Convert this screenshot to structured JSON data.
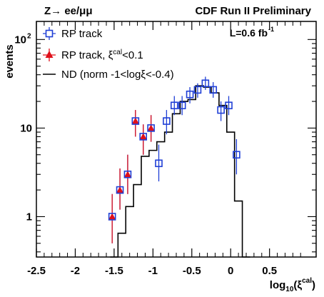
{
  "header": {
    "process_label": "Z→ ee/μμ",
    "experiment_label": "CDF Run II Preliminary",
    "lumi_label": "L=0.6 fb",
    "lumi_exp": "-1"
  },
  "chart_data": {
    "type": "scatter",
    "ylabel": "events",
    "xlabel_main": "log",
    "xlabel_sub": "10",
    "xlabel_paren": "(ξ",
    "xlabel_sup": "cal",
    "xlabel_close": ")",
    "xlim": [
      -2.5,
      1.1
    ],
    "ylim": [
      0.35,
      160
    ],
    "yscale": "log",
    "x_ticks": [
      -2.5,
      -2,
      -1.5,
      -1,
      -0.5,
      0,
      0.5
    ],
    "x_tick_labels": [
      "-2.5",
      "-2",
      "-1.5",
      "-1",
      "-0.5",
      "0",
      "0.5"
    ],
    "y_ticks": [
      1,
      10
    ],
    "y_tick_labels": [
      "1",
      "10"
    ],
    "y_tick_label_top": "10",
    "y_tick_label_top_exp": "2",
    "legend": {
      "placement": "top-left",
      "entries": [
        {
          "label": "RP track",
          "marker": "open-square",
          "color": "#1f3fd6"
        },
        {
          "label": "RP track, ξ",
          "sup": "cal",
          "tail": "<0.1",
          "marker": "triangle",
          "color": "#e0101a"
        },
        {
          "label": "ND (norm -1<logξ<-0.4)",
          "marker": "line",
          "color": "#000000"
        }
      ]
    },
    "series": [
      {
        "name": "RP track",
        "marker": "open-square",
        "color": "#1f3fd6",
        "points": [
          {
            "x": -1.525,
            "y": 1.0,
            "lo": 0.5,
            "hi": 1.8
          },
          {
            "x": -1.425,
            "y": 2.0,
            "lo": 1.2,
            "hi": 3.5
          },
          {
            "x": -1.325,
            "y": 3.0,
            "lo": 1.8,
            "hi": 5.0
          },
          {
            "x": -1.225,
            "y": 12.0,
            "lo": 8.0,
            "hi": 16.0
          },
          {
            "x": -1.125,
            "y": 8.0,
            "lo": 5.0,
            "hi": 11.0
          },
          {
            "x": -1.025,
            "y": 10.0,
            "lo": 7.0,
            "hi": 14.0
          },
          {
            "x": -0.925,
            "y": 4.0,
            "lo": 2.5,
            "hi": 6.5
          },
          {
            "x": -0.825,
            "y": 12.0,
            "lo": 8.5,
            "hi": 16.0
          },
          {
            "x": -0.725,
            "y": 18.0,
            "lo": 14.0,
            "hi": 23.0
          },
          {
            "x": -0.625,
            "y": 18.0,
            "lo": 14.0,
            "hi": 23.0
          },
          {
            "x": -0.525,
            "y": 24.0,
            "lo": 19.0,
            "hi": 29.0
          },
          {
            "x": -0.425,
            "y": 27.0,
            "lo": 22.0,
            "hi": 32.0
          },
          {
            "x": -0.325,
            "y": 32.0,
            "lo": 27.0,
            "hi": 38.0
          },
          {
            "x": -0.225,
            "y": 27.0,
            "lo": 22.0,
            "hi": 33.0
          },
          {
            "x": -0.125,
            "y": 16.0,
            "lo": 12.0,
            "hi": 20.0
          },
          {
            "x": -0.025,
            "y": 18.0,
            "lo": 14.0,
            "hi": 23.0
          },
          {
            "x": 0.075,
            "y": 5.0,
            "lo": 3.0,
            "hi": 7.5
          }
        ]
      },
      {
        "name": "RP track, ξcal<0.1",
        "marker": "triangle",
        "color": "#e0101a",
        "points": [
          {
            "x": -1.525,
            "y": 1.0,
            "lo": 0.5,
            "hi": 1.8
          },
          {
            "x": -1.425,
            "y": 2.0,
            "lo": 1.2,
            "hi": 3.5
          },
          {
            "x": -1.325,
            "y": 3.0,
            "lo": 1.8,
            "hi": 5.0
          },
          {
            "x": -1.225,
            "y": 12.0,
            "lo": 8.0,
            "hi": 16.0
          },
          {
            "x": -1.125,
            "y": 8.0,
            "lo": 5.0,
            "hi": 11.0
          },
          {
            "x": -1.025,
            "y": 10.0,
            "lo": 7.0,
            "hi": 14.0
          }
        ]
      },
      {
        "name": "ND (norm -1<logξ<-0.4)",
        "marker": "step-line",
        "color": "#000000",
        "bins": [
          {
            "x0": -1.55,
            "x1": -1.45,
            "y": 0.35
          },
          {
            "x0": -1.45,
            "x1": -1.35,
            "y": 0.65
          },
          {
            "x0": -1.35,
            "x1": -1.25,
            "y": 1.3
          },
          {
            "x0": -1.25,
            "x1": -1.15,
            "y": 2.3
          },
          {
            "x0": -1.15,
            "x1": -1.05,
            "y": 4.8
          },
          {
            "x0": -1.05,
            "x1": -0.95,
            "y": 5.6
          },
          {
            "x0": -0.95,
            "x1": -0.85,
            "y": 7.0
          },
          {
            "x0": -0.85,
            "x1": -0.75,
            "y": 9.0
          },
          {
            "x0": -0.75,
            "x1": -0.65,
            "y": 14.5
          },
          {
            "x0": -0.65,
            "x1": -0.55,
            "y": 20.0
          },
          {
            "x0": -0.55,
            "x1": -0.45,
            "y": 21.0
          },
          {
            "x0": -0.45,
            "x1": -0.35,
            "y": 30.0
          },
          {
            "x0": -0.35,
            "x1": -0.25,
            "y": 29.0
          },
          {
            "x0": -0.25,
            "x1": -0.15,
            "y": 25.0
          },
          {
            "x0": -0.15,
            "x1": -0.05,
            "y": 18.0
          },
          {
            "x0": -0.05,
            "x1": 0.05,
            "y": 9.0
          },
          {
            "x0": 0.05,
            "x1": 0.15,
            "y": 1.5
          },
          {
            "x0": 0.15,
            "x1": 0.25,
            "y": 0.35
          }
        ]
      }
    ]
  }
}
